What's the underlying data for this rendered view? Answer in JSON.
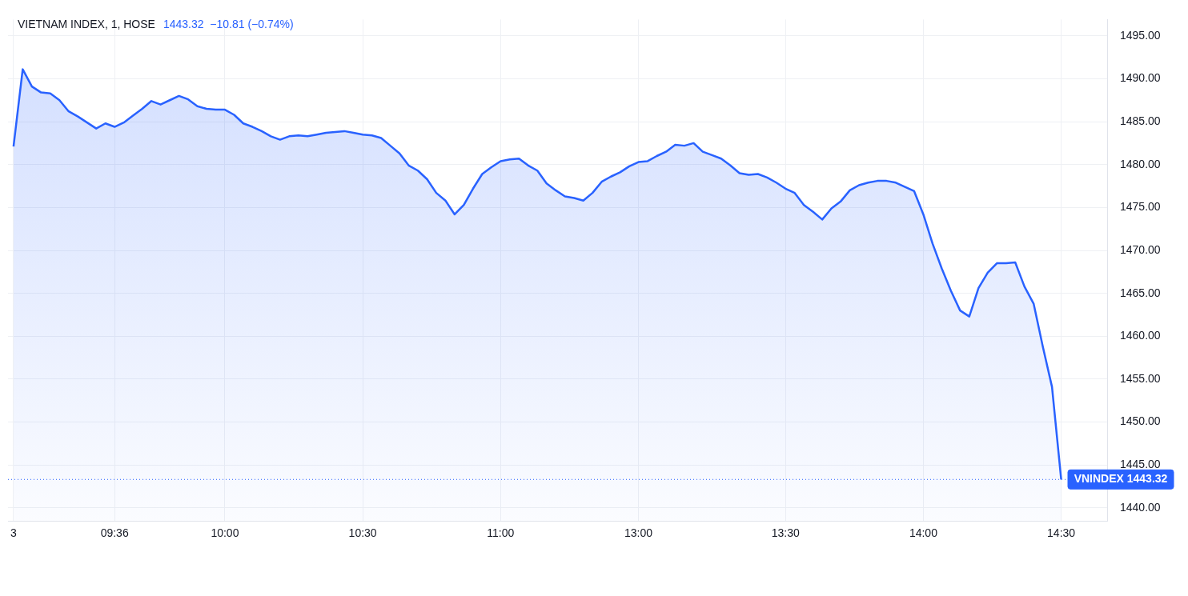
{
  "chart_data": {
    "type": "area",
    "title": "VIETNAM INDEX, 1, HOSE",
    "subtitle": "1443.32  −10.81 (−0.74%)",
    "categories": [
      "3",
      null,
      null,
      null,
      null,
      null,
      null,
      null,
      null,
      null,
      null,
      "09:36",
      null,
      null,
      null,
      null,
      null,
      null,
      null,
      null,
      null,
      null,
      null,
      "10:00",
      null,
      null,
      null,
      null,
      null,
      null,
      null,
      null,
      null,
      null,
      null,
      null,
      null,
      null,
      "10:30",
      null,
      null,
      null,
      null,
      null,
      null,
      null,
      null,
      null,
      null,
      null,
      null,
      null,
      null,
      "11:00",
      null,
      null,
      null,
      null,
      null,
      null,
      null,
      null,
      null,
      null,
      null,
      null,
      null,
      null,
      "13:00",
      null,
      null,
      null,
      null,
      null,
      null,
      null,
      null,
      null,
      null,
      null,
      null,
      null,
      null,
      null,
      "13:30",
      null,
      null,
      null,
      null,
      null,
      null,
      null,
      null,
      null,
      null,
      null,
      null,
      null,
      null,
      "14:00",
      null,
      null,
      null,
      null,
      null,
      null,
      null,
      null,
      null,
      null,
      null,
      null,
      null,
      null,
      "14:30"
    ],
    "series": [
      {
        "color": "#2962ff",
        "values": [
          1482.1,
          1491.1,
          1489.1,
          1488.4,
          1488.3,
          1487.5,
          1486.2,
          1485.6,
          1484.9,
          1484.2,
          1484.8,
          1484.4,
          1484.9,
          1485.7,
          1486.5,
          1487.4,
          1487.0,
          1487.5,
          1488.0,
          1487.6,
          1486.8,
          1486.5,
          1486.4,
          1486.4,
          1485.8,
          1484.8,
          1484.4,
          1483.9,
          1483.3,
          1482.9,
          1483.3,
          1483.4,
          1483.3,
          1483.5,
          1483.7,
          1483.8,
          1483.9,
          1483.7,
          1483.5,
          1483.4,
          1483.1,
          1482.2,
          1481.3,
          1479.9,
          1479.3,
          1478.3,
          1476.7,
          1475.8,
          1474.2,
          1475.3,
          1477.2,
          1478.9,
          1479.7,
          1480.4,
          1480.6,
          1480.7,
          1479.9,
          1479.3,
          1477.8,
          1477.0,
          1476.3,
          1476.1,
          1475.8,
          1476.7,
          1478.0,
          1478.6,
          1479.1,
          1479.8,
          1480.3,
          1480.4,
          1481.0,
          1481.5,
          1482.3,
          1482.2,
          1482.5,
          1481.5,
          1481.1,
          1480.7,
          1479.9,
          1479.0,
          1478.8,
          1478.9,
          1478.5,
          1477.9,
          1477.2,
          1476.7,
          1475.3,
          1474.5,
          1473.6,
          1474.9,
          1475.7,
          1477.0,
          1477.6,
          1477.9,
          1478.1,
          1478.1,
          1477.9,
          1477.4,
          1476.9,
          1474.2,
          1470.8,
          1467.9,
          1465.3,
          1463.0,
          1462.3,
          1465.6,
          1467.4,
          1468.5,
          1468.5,
          1468.6,
          1465.8,
          1463.8,
          1458.8,
          1454.1,
          1443.32
        ]
      }
    ],
    "ylim": [
      1438.5,
      1496.9
    ],
    "yticks": [
      {
        "value": 1440,
        "label": "1440.00"
      },
      {
        "value": 1445,
        "label": "1445.00"
      },
      {
        "value": 1450,
        "label": "1450.00"
      },
      {
        "value": 1455,
        "label": "1455.00"
      },
      {
        "value": 1460,
        "label": "1460.00"
      },
      {
        "value": 1465,
        "label": "1465.00"
      },
      {
        "value": 1470,
        "label": "1470.00"
      },
      {
        "value": 1475,
        "label": "1475.00"
      },
      {
        "value": 1480,
        "label": "1480.00"
      },
      {
        "value": 1485,
        "label": "1485.00"
      },
      {
        "value": 1490,
        "label": "1490.00"
      },
      {
        "value": 1495,
        "label": "1495.00"
      }
    ],
    "ref_lines": [
      {
        "axis": "y",
        "value": 1443.32,
        "label": "VNINDEX 1443.32",
        "color": "#2962ff",
        "line_style": "dotted"
      }
    ],
    "grid": true,
    "legend": false,
    "marker": "none",
    "line_style": "solid"
  }
}
